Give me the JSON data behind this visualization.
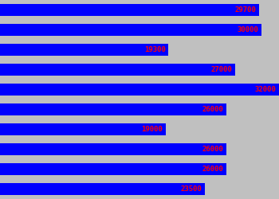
{
  "values": [
    29700,
    30000,
    19300,
    27000,
    32000,
    26000,
    19000,
    26000,
    26000,
    23500
  ],
  "bar_color": "#0000FF",
  "label_color": "#FF0000",
  "background_color": "#C0C0C0",
  "max_value": 32000,
  "label_fontsize": 6.5,
  "label_fontweight": "bold",
  "fig_width": 3.5,
  "fig_height": 2.5,
  "dpi": 100
}
